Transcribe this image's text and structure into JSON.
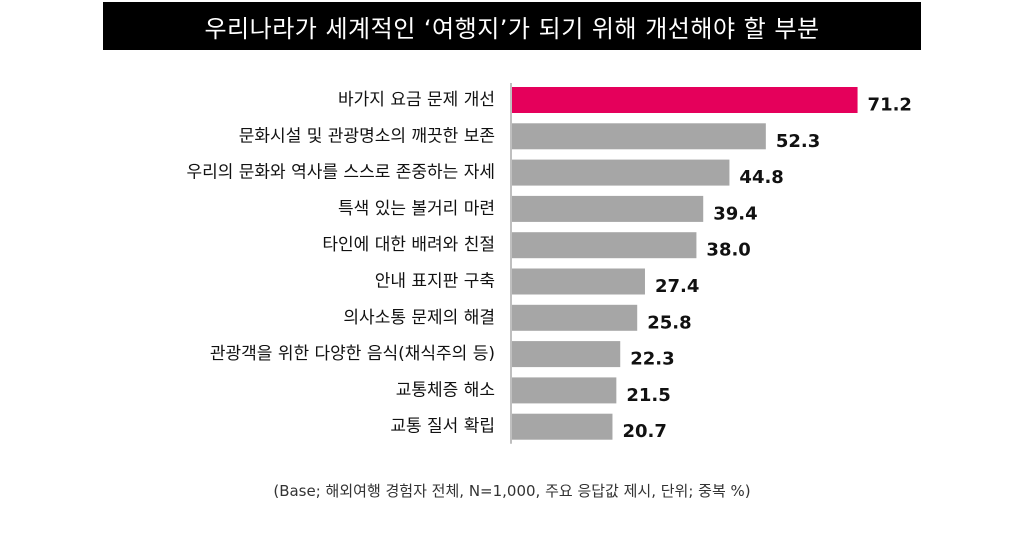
{
  "title": "우리나라가 세계적인 ‘여행지’가 되기 위해 개선해야 할 부분",
  "footnote": "(Base; 해외여행 경험자 전체, N=1,000, 주요 응답값 제시, 단위; 중복 %)",
  "colors": {
    "highlight": "#E5005B",
    "bar": "#A6A6A6",
    "axis": "#7F7F7F",
    "title_bg": "#000000"
  },
  "chart_data": {
    "type": "bar",
    "orientation": "horizontal",
    "categories": [
      "바가지 요금 문제 개선",
      "문화시설 및 관광명소의 깨끗한 보존",
      "우리의 문화와 역사를 스스로 존중하는 자세",
      "특색 있는 볼거리 마련",
      "타인에 대한 배려와 친절",
      "안내 표지판 구축",
      "의사소통 문제의 해결",
      "관광객을 위한 다양한 음식(채식주의 등)",
      "교통체증 해소",
      "교통 질서 확립"
    ],
    "values": [
      71.2,
      52.3,
      44.8,
      39.4,
      38.0,
      27.4,
      25.8,
      22.3,
      21.5,
      20.7
    ],
    "value_labels": [
      "71.2",
      "52.3",
      "44.8",
      "39.4",
      "38.0",
      "27.4",
      "25.8",
      "22.3",
      "21.5",
      "20.7"
    ],
    "highlight_index": 0,
    "xlim": [
      0,
      75
    ],
    "grid": false
  }
}
